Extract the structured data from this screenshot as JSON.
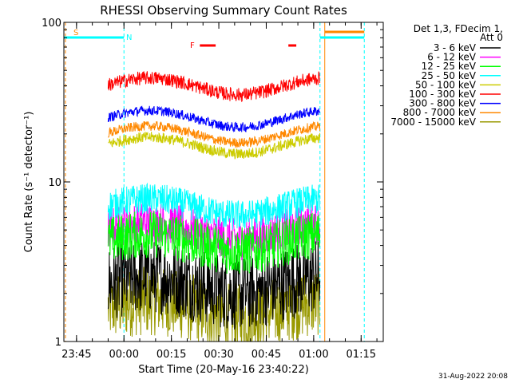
{
  "chart_data": {
    "type": "line",
    "title": "RHESSI Observing Summary Count Rates",
    "xlabel": "Start Time (20-May-16 23:40:22)",
    "ylabel": "Count Rate (s⁻¹ detector⁻¹)",
    "yscale": "log",
    "ylim": [
      1,
      100
    ],
    "xlim_minutes": [
      -19,
      82
    ],
    "x_tick_labels": [
      "23:45",
      "00:00",
      "00:15",
      "00:30",
      "00:45",
      "01:00",
      "01:15"
    ],
    "x_tick_minutes": [
      -15,
      0,
      15,
      30,
      45,
      60,
      75
    ],
    "y_tick_labels": [
      "1",
      "10",
      "100"
    ],
    "y_tick_values": [
      1,
      10,
      100
    ],
    "legend": {
      "title_line1": "Det 1,3, FDecim 1,",
      "title_line2": "Att 0",
      "placement": "top-right"
    },
    "series": [
      {
        "name": "3 - 6 keV",
        "color": "#000000",
        "level": 2.3,
        "noise": 0.55,
        "min": 1,
        "segments": [
          [
            -5,
            62
          ]
        ]
      },
      {
        "name": "6 - 12 keV",
        "color": "#ff00ff",
        "level": 5.0,
        "noise": 0.3,
        "min": 2.5,
        "segments": [
          [
            -5,
            62
          ]
        ]
      },
      {
        "name": "12 - 25 keV",
        "color": "#00ff00",
        "level": 4.2,
        "noise": 0.35,
        "min": 2.2,
        "segments": [
          [
            -5,
            62
          ]
        ]
      },
      {
        "name": "25 - 50 keV",
        "color": "#00ffff",
        "level": 7.0,
        "noise": 0.22,
        "min": 4.5,
        "segments": [
          [
            -5,
            62
          ]
        ]
      },
      {
        "name": "50 - 100 keV",
        "color": "#cccc00",
        "level": 17,
        "noise": 0.08,
        "min": 12,
        "segments": [
          [
            -5,
            62
          ]
        ]
      },
      {
        "name": "100 - 300 keV",
        "color": "#ff0000",
        "level": 40,
        "noise": 0.1,
        "min": 28,
        "segments": [
          [
            -5,
            62
          ]
        ]
      },
      {
        "name": "300 - 800 keV",
        "color": "#0000ff",
        "level": 25,
        "noise": 0.07,
        "min": 18,
        "segments": [
          [
            -5,
            62
          ]
        ]
      },
      {
        "name": "800 - 7000 keV",
        "color": "#ff8800",
        "level": 20,
        "noise": 0.07,
        "min": 15,
        "segments": [
          [
            -5,
            62
          ]
        ]
      },
      {
        "name": "7000 - 15000 keV",
        "color": "#999900",
        "level": 1.6,
        "noise": 0.5,
        "min": 1,
        "segments": [
          [
            -5,
            62
          ]
        ]
      }
    ],
    "annotations": {
      "flags": [
        {
          "label": "S",
          "color": "#ff8800",
          "minute": -18
        },
        {
          "label": "N",
          "color": "#00ffff",
          "minute": 0
        },
        {
          "label": "F",
          "color": "#ff0000",
          "minute": 22
        }
      ]
    }
  },
  "timestamp": "31-Aug-2022 20:08"
}
